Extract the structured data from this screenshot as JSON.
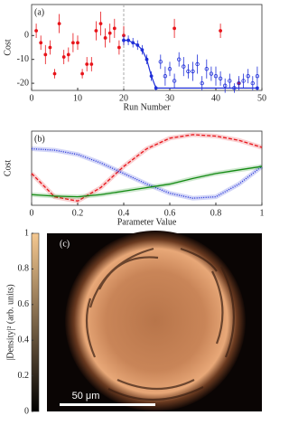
{
  "chart_data": [
    {
      "type": "scatter",
      "label": "(a)",
      "xlabel": "Run Number",
      "ylabel": "Cost",
      "xlim": [
        0,
        50
      ],
      "ylim": [
        -23,
        13
      ],
      "xticks": [
        0,
        10,
        20,
        30,
        40,
        50
      ],
      "yticks": [
        -20,
        -10,
        0
      ],
      "vlines": [
        20
      ],
      "series": [
        {
          "color": "#e8141a",
          "marker": "dot",
          "x": [
            1,
            2,
            3,
            4,
            5,
            6,
            7,
            8,
            9,
            10,
            11,
            12,
            13,
            14,
            15,
            16,
            17,
            18,
            19,
            20,
            31,
            41,
            45
          ],
          "values": [
            2,
            -3,
            -8,
            -5,
            -16,
            5,
            -9,
            -8,
            -3,
            -3,
            -16,
            -12,
            -12,
            2,
            5,
            -1,
            1,
            3,
            -5,
            0,
            3,
            2,
            -20
          ],
          "errors": [
            3,
            3,
            4,
            3,
            2,
            4,
            3,
            3,
            4,
            3,
            2,
            3,
            3,
            4,
            5,
            4,
            4,
            4,
            3,
            4,
            4,
            3,
            2
          ]
        },
        {
          "color": "#1f2fd8",
          "marker": "line",
          "x": [
            20,
            21,
            22,
            23,
            24,
            25,
            26,
            27,
            49
          ],
          "values": [
            -2,
            -2,
            -3,
            -4,
            -6,
            -10,
            -17,
            -22,
            -22
          ],
          "errors": [
            2,
            2,
            2,
            2,
            2,
            2,
            2,
            1,
            1
          ]
        },
        {
          "color": "#1f2fd8",
          "marker": "circle",
          "x": [
            28,
            29,
            30,
            31,
            32,
            33,
            34,
            35,
            36,
            37,
            38,
            39,
            40,
            41,
            42,
            43,
            44,
            45,
            46,
            47,
            48,
            49
          ],
          "values": [
            -11,
            -17,
            -14,
            -19,
            -10,
            -13,
            -15,
            -15,
            -12,
            -20,
            -14,
            -16,
            -17,
            -18,
            -21,
            -19,
            -22,
            -20,
            -19,
            -17,
            -20,
            -17
          ],
          "errors": [
            3,
            4,
            3,
            3,
            3,
            4,
            3,
            4,
            4,
            3,
            4,
            3,
            4,
            3,
            3,
            3,
            2,
            3,
            3,
            3,
            3,
            4
          ]
        }
      ]
    },
    {
      "type": "line",
      "label": "(b)",
      "xlabel": "Parameter Value",
      "ylabel": "Cost",
      "xlim": [
        0,
        1
      ],
      "ylim": [
        0,
        1.05
      ],
      "xticks": [
        0,
        0.2,
        0.4,
        0.6,
        0.8,
        1
      ],
      "x": [
        0,
        0.1,
        0.2,
        0.3,
        0.4,
        0.5,
        0.6,
        0.7,
        0.8,
        0.9,
        1
      ],
      "series": [
        {
          "color": "#e8141a",
          "dash": "4 2",
          "values": [
            0.45,
            0.12,
            0.06,
            0.25,
            0.55,
            0.8,
            0.95,
            1.0,
            0.98,
            0.92,
            0.82
          ]
        },
        {
          "color": "#1f2fd8",
          "dash": "1 1.5",
          "values": [
            0.8,
            0.78,
            0.72,
            0.6,
            0.45,
            0.3,
            0.17,
            0.1,
            0.12,
            0.3,
            0.55
          ]
        },
        {
          "color": "#128a12",
          "dash": "none",
          "values": [
            0.15,
            0.13,
            0.12,
            0.15,
            0.2,
            0.25,
            0.3,
            0.38,
            0.45,
            0.5,
            0.55
          ]
        }
      ]
    },
    {
      "type": "image",
      "label": "(c)",
      "colorbar_label": "|Density|² (arb. units)",
      "clim": [
        0,
        1
      ],
      "colorbar_ticks": [
        0,
        0.2,
        0.4,
        0.6,
        0.8,
        1
      ],
      "colors": [
        "#000000",
        "#f5c890"
      ],
      "scale_bar": "50 μm"
    }
  ]
}
